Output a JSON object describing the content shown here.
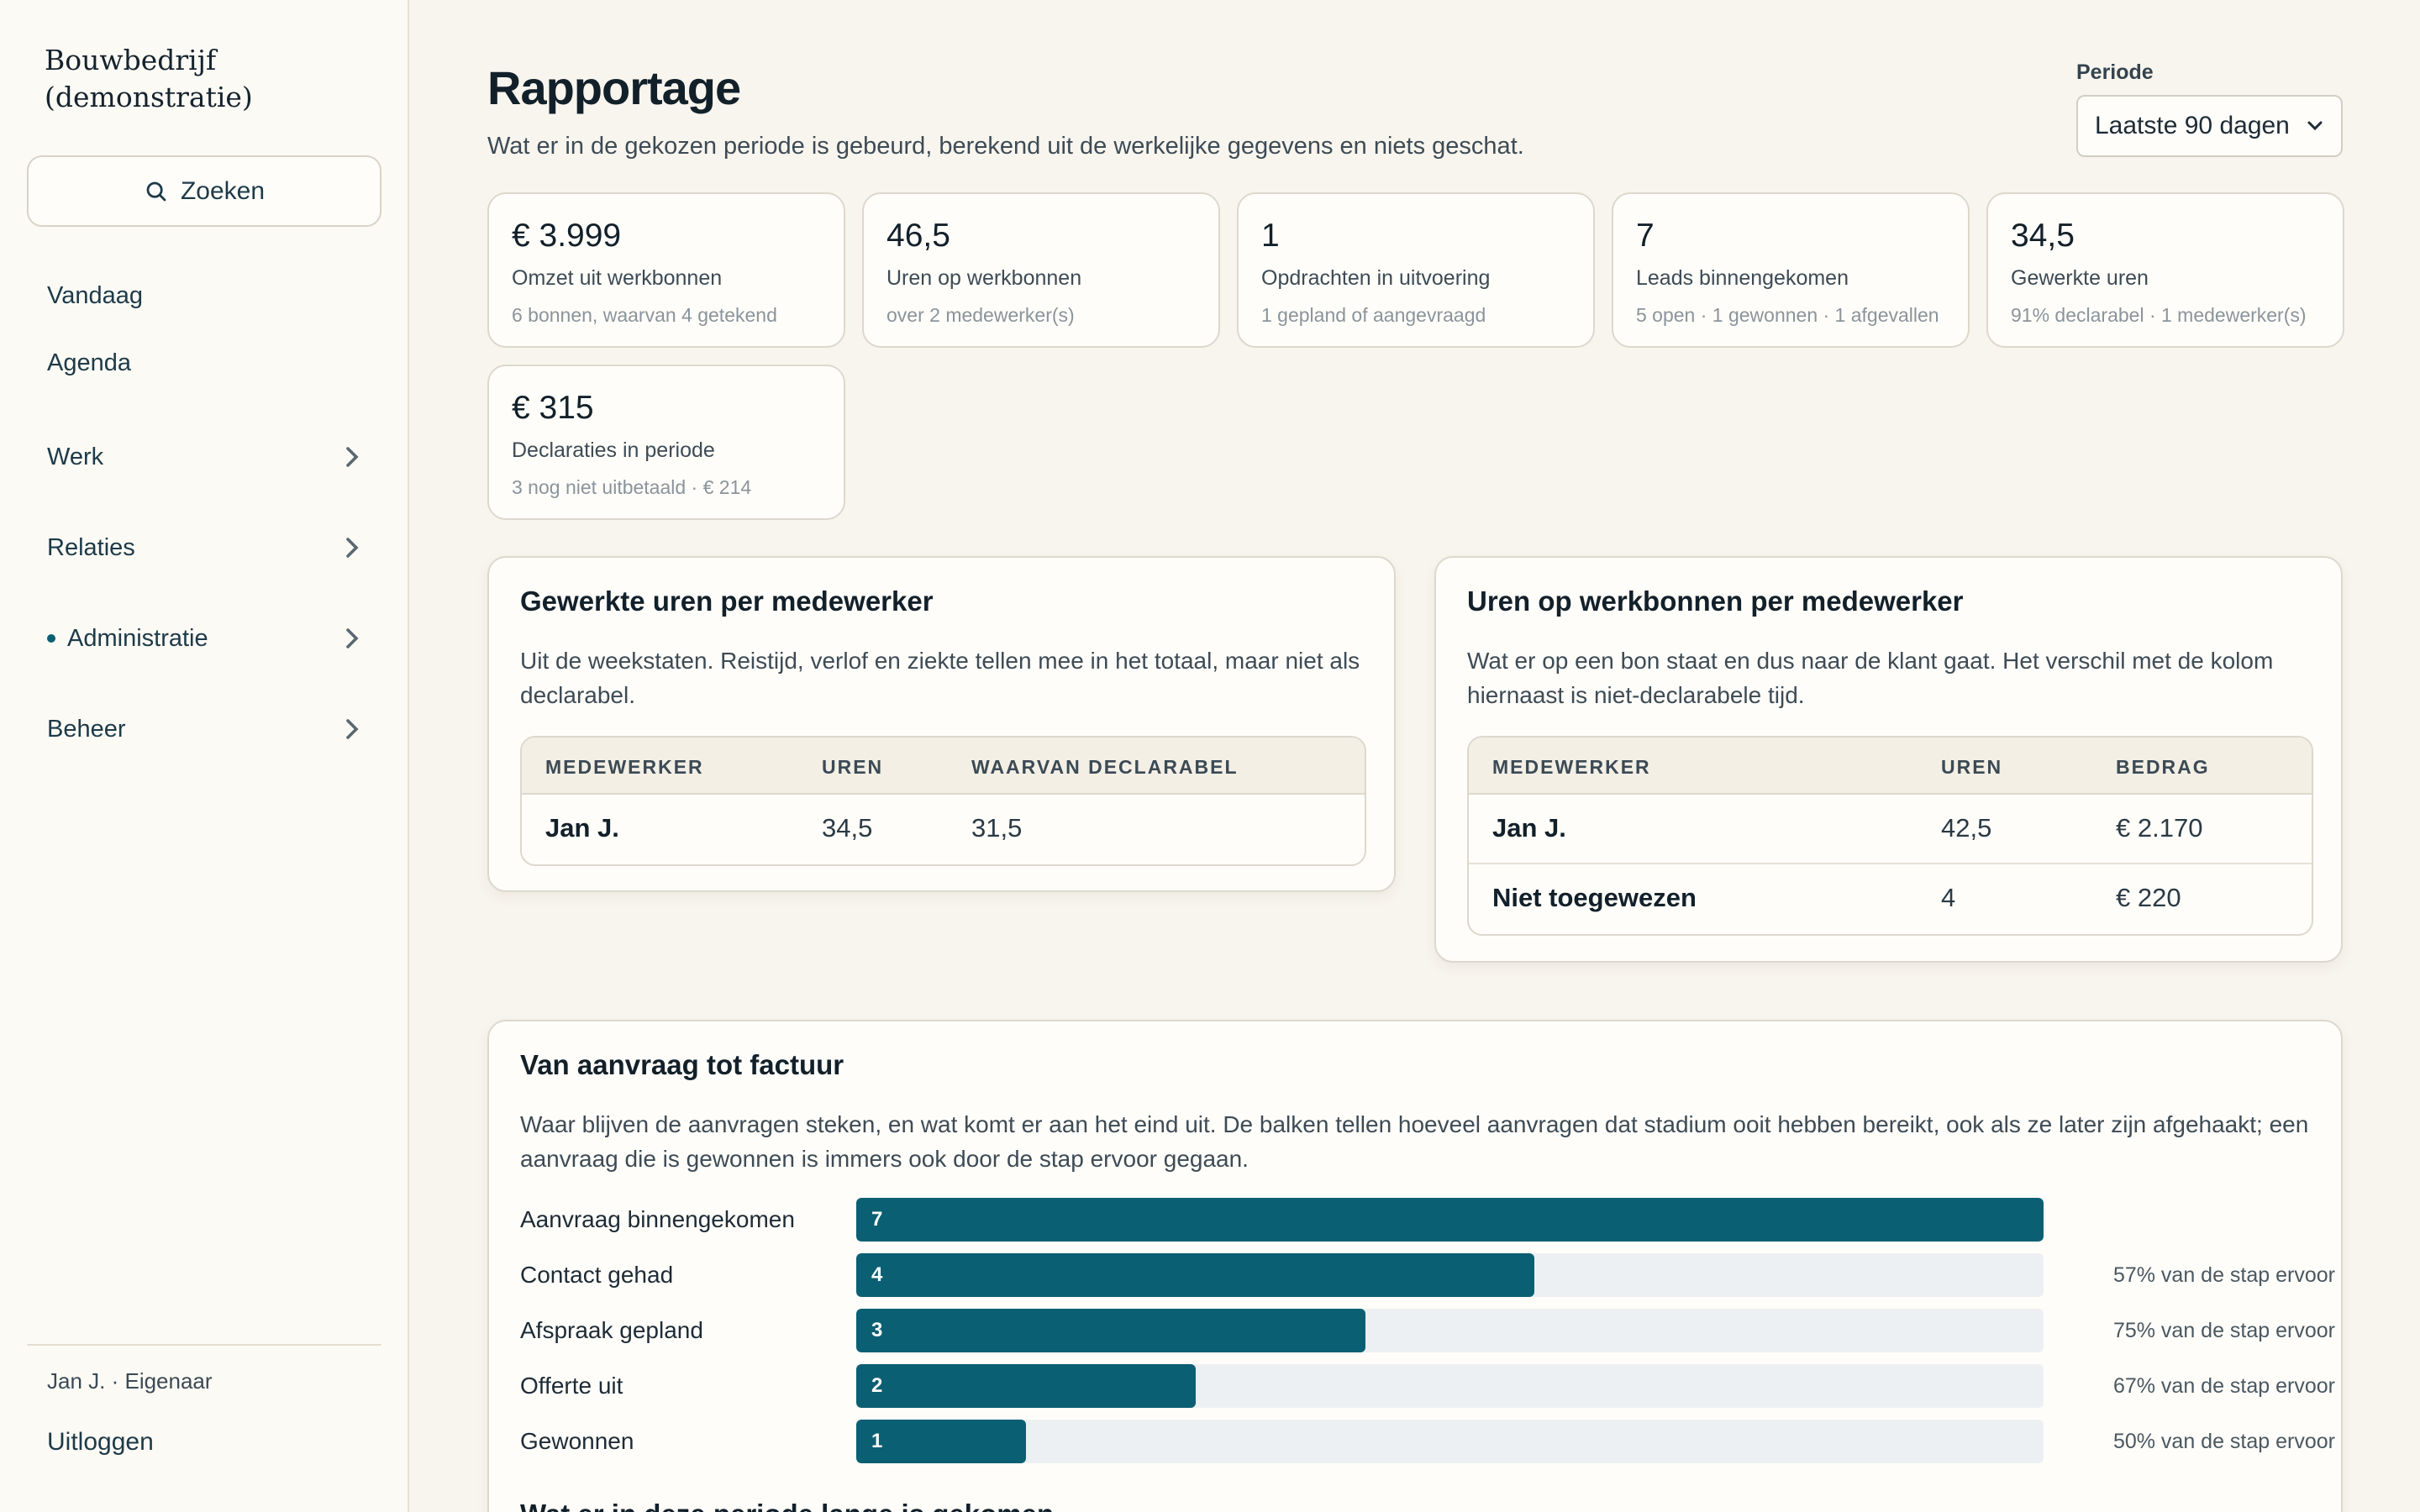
{
  "sidebar": {
    "brand_line1": "Bouwbedrijf",
    "brand_line2": "(demonstratie)",
    "search_label": "Zoeken",
    "items": [
      {
        "label": "Vandaag"
      },
      {
        "label": "Agenda"
      },
      {
        "label": "Werk"
      },
      {
        "label": "Relaties"
      },
      {
        "label": "Administratie",
        "active": true
      },
      {
        "label": "Beheer"
      }
    ],
    "user": "Jan J. · Eigenaar",
    "logout": "Uitloggen"
  },
  "header": {
    "title": "Rapportage",
    "subtitle": "Wat er in de gekozen periode is gebeurd, berekend uit de werkelijke gegevens en niets geschat.",
    "period_label": "Periode",
    "period_value": "Laatste 90 dagen"
  },
  "stats": [
    {
      "value": "€ 3.999",
      "label": "Omzet uit werkbonnen",
      "sub": "6 bonnen, waarvan 4 getekend"
    },
    {
      "value": "46,5",
      "label": "Uren op werkbonnen",
      "sub": "over 2 medewerker(s)"
    },
    {
      "value": "1",
      "label": "Opdrachten in uitvoering",
      "sub": "1 gepland of aangevraagd"
    },
    {
      "value": "7",
      "label": "Leads binnengekomen",
      "sub": "5 open · 1 gewonnen · 1 afgevallen"
    },
    {
      "value": "34,5",
      "label": "Gewerkte uren",
      "sub": "91% declarabel · 1 medewerker(s)"
    },
    {
      "value": "€ 315",
      "label": "Declaraties in periode",
      "sub": "3 nog niet uitbetaald · € 214"
    }
  ],
  "hours_panel": {
    "title": "Gewerkte uren per medewerker",
    "desc_line1": "Uit de weekstaten. Reistijd, verlof en ziekte tellen mee in het totaal, maar niet als",
    "desc_line2": "declarabel.",
    "columns": [
      "MEDEWERKER",
      "UREN",
      "WAARVAN DECLARABEL"
    ],
    "rows": [
      {
        "name": "Jan J.",
        "hours": "34,5",
        "billable": "31,5"
      }
    ]
  },
  "workorder_panel": {
    "title": "Uren op werkbonnen per medewerker",
    "desc_line1": "Wat er op een bon staat en dus naar de klant gaat. Het verschil met de kolom",
    "desc_line2": "hiernaast is niet-declarabele tijd.",
    "columns": [
      "MEDEWERKER",
      "UREN",
      "BEDRAG"
    ],
    "rows": [
      {
        "name": "Jan J.",
        "hours": "42,5",
        "amount": "€ 2.170"
      },
      {
        "name": "Niet toegewezen",
        "hours": "4",
        "amount": "€ 220"
      }
    ]
  },
  "funnel": {
    "title": "Van aanvraag tot factuur",
    "desc_line1": "Waar blijven de aanvragen steken, en wat komt er aan het eind uit. De balken tellen hoeveel aanvragen dat stadium ooit hebben bereikt, ook als ze later zijn afgehaakt; een",
    "desc_line2": "aanvraag die is gewonnen is immers ook door de stap ervoor gegaan.",
    "max": 7,
    "stages": [
      {
        "label": "Aanvraag binnengekomen",
        "count": 7,
        "pct": ""
      },
      {
        "label": "Contact gehad",
        "count": 4,
        "pct": "57% van de stap ervoor"
      },
      {
        "label": "Afspraak gepland",
        "count": 3,
        "pct": "75% van de stap ervoor"
      },
      {
        "label": "Offerte uit",
        "count": 2,
        "pct": "67% van de stap ervoor"
      },
      {
        "label": "Gewonnen",
        "count": 1,
        "pct": "50% van de stap ervoor"
      }
    ],
    "next_heading": "Wat er in deze periode lange is gekomen"
  },
  "colors": {
    "accent": "#0b5f72",
    "background": "#f8f5ee",
    "track": "#edf0f2"
  }
}
